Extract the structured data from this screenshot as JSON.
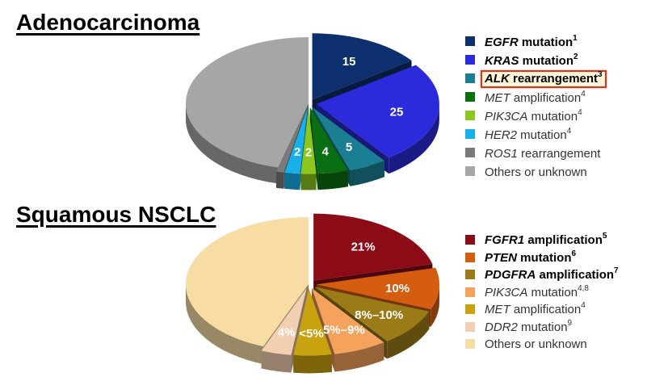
{
  "sections": {
    "adeno_title": "Adenocarcinoma",
    "squam_title": "Squamous NSCLC"
  },
  "chart_data": [
    {
      "type": "pie",
      "title": "Adenocarcinoma",
      "slices": [
        {
          "label_italic": "EGFR",
          "label_rest": " mutation",
          "sup": "1",
          "bold": true,
          "value": 15,
          "display": "15",
          "color": "#0e2f6e",
          "exploded": true
        },
        {
          "label_italic": "KRAS",
          "label_rest": " mutation",
          "sup": "2",
          "bold": true,
          "value": 25,
          "display": "25",
          "color": "#2b2bdc",
          "exploded": true
        },
        {
          "label_italic": "ALK",
          "label_rest": " rearrangement",
          "sup": "3",
          "bold": true,
          "highlight": true,
          "value": 5,
          "display": "5",
          "color": "#1a7f92",
          "exploded": true
        },
        {
          "label_italic": "MET",
          "label_rest": " amplification",
          "sup": "4",
          "bold": false,
          "value": 4,
          "display": "4",
          "color": "#0a6e12",
          "exploded": true
        },
        {
          "label_italic": "PIK3CA",
          "label_rest": " mutation",
          "sup": "4",
          "bold": false,
          "value": 2,
          "display": "2",
          "color": "#8cc71e",
          "exploded": true
        },
        {
          "label_italic": "HER2",
          "label_rest": " mutation",
          "sup": "4",
          "bold": false,
          "value": 2,
          "display": "2",
          "color": "#18b0ea",
          "exploded": true
        },
        {
          "label_italic": "ROS1",
          "label_rest": " rearrangement",
          "sup": "",
          "bold": false,
          "value": 1,
          "display": "",
          "color": "#7a7a7a",
          "exploded": true
        },
        {
          "label_italic": "",
          "label_rest": "Others  or unknown",
          "sup": "",
          "bold": false,
          "value": 46,
          "display": "",
          "color": "#a6a6a6",
          "exploded": false
        }
      ]
    },
    {
      "type": "pie",
      "title": "Squamous NSCLC",
      "slices": [
        {
          "label_italic": "FGFR1",
          "label_rest": " amplification",
          "sup": "5",
          "bold": true,
          "value": 21,
          "display": "21%",
          "color": "#8b0b16",
          "exploded": true
        },
        {
          "label_italic": "PTEN",
          "label_rest": " mutation",
          "sup": "6",
          "bold": true,
          "value": 10,
          "display": "10%",
          "color": "#d45d10",
          "exploded": true
        },
        {
          "label_italic": "PDGFRA",
          "label_rest": " amplification",
          "sup": "7",
          "bold": true,
          "value": 9,
          "display": "8%–10%",
          "color": "#9b7a18",
          "exploded": true
        },
        {
          "label_italic": "PIK3CA",
          "label_rest": " mutation",
          "sup": "4,8",
          "bold": false,
          "value": 7,
          "display": "5%–9%",
          "color": "#f4a25c",
          "exploded": true
        },
        {
          "label_italic": "MET",
          "label_rest": " amplification",
          "sup": "4",
          "bold": false,
          "value": 5,
          "display": "<5%",
          "color": "#c9a210",
          "exploded": true
        },
        {
          "label_italic": "DDR2",
          "label_rest": " mutation",
          "sup": "9",
          "bold": false,
          "value": 4,
          "display": "4%",
          "color": "#f2cfb0",
          "exploded": true
        },
        {
          "label_italic": "",
          "label_rest": "Others  or unknown",
          "sup": "",
          "bold": false,
          "value": 44,
          "display": "",
          "color": "#f7dca4",
          "exploded": false
        }
      ]
    }
  ]
}
